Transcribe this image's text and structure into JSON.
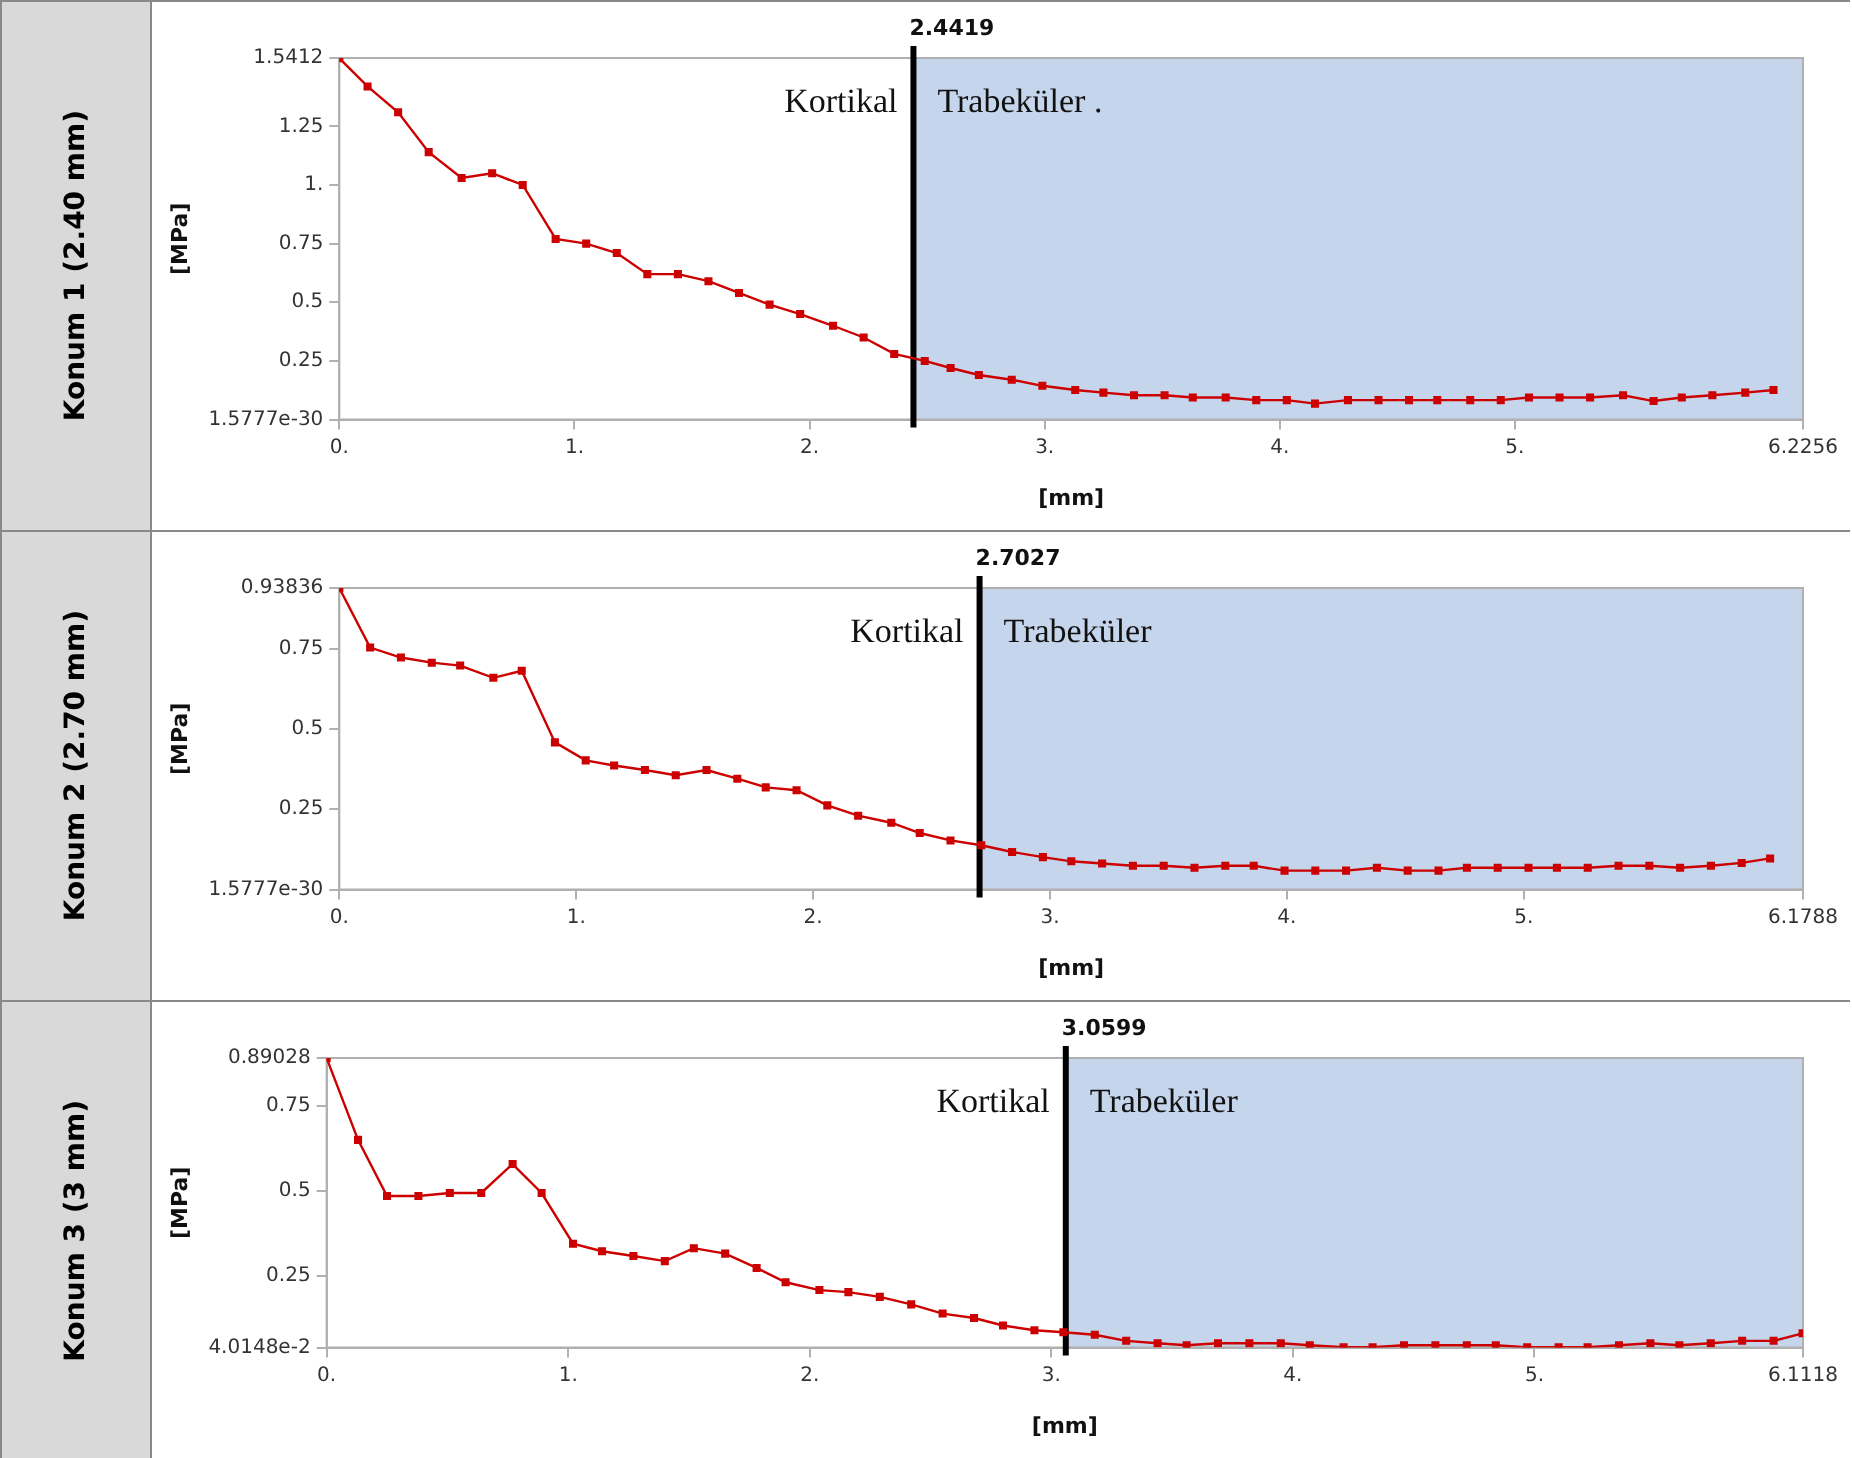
{
  "chart_data": [
    {
      "type": "line",
      "title": "Konum 1 (2.40 mm)",
      "xlabel": "[mm]",
      "ylabel": "[MPa]",
      "color": "#cc0000",
      "marker": "square",
      "grid": false,
      "legend": false,
      "x": [
        0,
        0.12,
        0.25,
        0.38,
        0.52,
        0.65,
        0.78,
        0.92,
        1.05,
        1.18,
        1.31,
        1.44,
        1.57,
        1.7,
        1.83,
        1.96,
        2.1,
        2.23,
        2.36,
        2.49,
        2.6,
        2.72,
        2.86,
        2.99,
        3.13,
        3.25,
        3.38,
        3.51,
        3.63,
        3.77,
        3.9,
        4.03,
        4.15,
        4.29,
        4.42,
        4.55,
        4.67,
        4.81,
        4.94,
        5.06,
        5.19,
        5.32,
        5.46,
        5.59,
        5.71,
        5.84,
        5.98,
        6.1
      ],
      "values": [
        1.54,
        1.42,
        1.31,
        1.14,
        1.03,
        1.05,
        1.0,
        0.77,
        0.75,
        0.71,
        0.62,
        0.62,
        0.59,
        0.54,
        0.49,
        0.45,
        0.4,
        0.35,
        0.28,
        0.25,
        0.22,
        0.19,
        0.17,
        0.144,
        0.126,
        0.115,
        0.104,
        0.104,
        0.094,
        0.094,
        0.083,
        0.083,
        0.068,
        0.083,
        0.083,
        0.083,
        0.083,
        0.083,
        0.083,
        0.094,
        0.094,
        0.094,
        0.104,
        0.079,
        0.094,
        0.104,
        0.115,
        0.126
      ],
      "xlim": [
        0,
        6.2256
      ],
      "xticks": [
        {
          "value": 0,
          "label": "0."
        },
        {
          "value": 1,
          "label": "1."
        },
        {
          "value": 2,
          "label": "2."
        },
        {
          "value": 3,
          "label": "3."
        },
        {
          "value": 4,
          "label": "4."
        },
        {
          "value": 5,
          "label": "5."
        },
        6.2256
      ],
      "ylim": [
        1.5777e-30,
        1.5412
      ],
      "yticks": [
        {
          "value": 1.5777e-30,
          "label": "1.5777e-30"
        },
        0.25,
        0.5,
        0.75,
        {
          "value": 1,
          "label": "1."
        },
        1.25,
        1.5412
      ],
      "ref_lines": [
        {
          "axis": "x",
          "value": 2.4419,
          "label": "2.4419",
          "color": "#000000"
        }
      ],
      "bands": [
        {
          "axis": "x",
          "from": 2.4419,
          "to": 6.2256,
          "label": "Trabeküler .",
          "color": "#c5d5ec"
        }
      ],
      "annotations": [
        "Kortikal"
      ]
    },
    {
      "type": "line",
      "title": "Konum 2 (2.70 mm)",
      "xlabel": "[mm]",
      "ylabel": "[MPa]",
      "color": "#cc0000",
      "marker": "square",
      "grid": false,
      "legend": false,
      "x": [
        0,
        0.13,
        0.26,
        0.39,
        0.51,
        0.65,
        0.77,
        0.91,
        1.04,
        1.16,
        1.29,
        1.42,
        1.55,
        1.68,
        1.8,
        1.93,
        2.06,
        2.19,
        2.33,
        2.45,
        2.58,
        2.71,
        2.84,
        2.97,
        3.09,
        3.22,
        3.35,
        3.48,
        3.61,
        3.74,
        3.86,
        3.99,
        4.12,
        4.25,
        4.38,
        4.51,
        4.64,
        4.76,
        4.89,
        5.02,
        5.14,
        5.27,
        5.4,
        5.53,
        5.66,
        5.79,
        5.92,
        6.04
      ],
      "values": [
        0.938,
        0.753,
        0.722,
        0.706,
        0.697,
        0.659,
        0.681,
        0.458,
        0.402,
        0.386,
        0.372,
        0.356,
        0.372,
        0.345,
        0.318,
        0.309,
        0.262,
        0.23,
        0.208,
        0.176,
        0.153,
        0.138,
        0.117,
        0.101,
        0.088,
        0.081,
        0.074,
        0.074,
        0.068,
        0.074,
        0.074,
        0.059,
        0.059,
        0.059,
        0.068,
        0.059,
        0.059,
        0.068,
        0.068,
        0.068,
        0.068,
        0.068,
        0.074,
        0.074,
        0.068,
        0.074,
        0.083,
        0.097
      ],
      "xlim": [
        0,
        6.1788
      ],
      "xticks": [
        {
          "value": 0,
          "label": "0."
        },
        {
          "value": 1,
          "label": "1."
        },
        {
          "value": 2,
          "label": "2."
        },
        {
          "value": 3,
          "label": "3."
        },
        {
          "value": 4,
          "label": "4."
        },
        {
          "value": 5,
          "label": "5."
        },
        6.1788
      ],
      "ylim": [
        1.5777e-30,
        0.93836
      ],
      "yticks": [
        {
          "value": 1.5777e-30,
          "label": "1.5777e-30"
        },
        0.25,
        0.5,
        0.75,
        0.93836
      ],
      "ref_lines": [
        {
          "axis": "x",
          "value": 2.7027,
          "label": "2.7027",
          "color": "#000000"
        }
      ],
      "bands": [
        {
          "axis": "x",
          "from": 2.7027,
          "to": 6.1788,
          "label": "Trabeküler",
          "color": "#c5d5ec"
        }
      ],
      "annotations": [
        "Kortikal"
      ]
    },
    {
      "type": "line",
      "title": "Konum 3 (3 mm)",
      "xlabel": "[mm]",
      "ylabel": "[MPa]",
      "color": "#cc0000",
      "marker": "square",
      "grid": false,
      "legend": false,
      "x": [
        0,
        0.13,
        0.25,
        0.38,
        0.51,
        0.64,
        0.77,
        0.89,
        1.02,
        1.14,
        1.27,
        1.4,
        1.52,
        1.65,
        1.78,
        1.9,
        2.04,
        2.16,
        2.29,
        2.42,
        2.55,
        2.68,
        2.8,
        2.93,
        3.05,
        3.18,
        3.31,
        3.44,
        3.56,
        3.69,
        3.82,
        3.95,
        4.07,
        4.21,
        4.33,
        4.46,
        4.59,
        4.72,
        4.84,
        4.97,
        5.1,
        5.22,
        5.35,
        5.48,
        5.6,
        5.73,
        5.86,
        5.99,
        6.11
      ],
      "values": [
        0.89,
        0.65,
        0.485,
        0.485,
        0.494,
        0.494,
        0.579,
        0.494,
        0.345,
        0.323,
        0.309,
        0.294,
        0.332,
        0.316,
        0.274,
        0.232,
        0.209,
        0.203,
        0.189,
        0.167,
        0.14,
        0.127,
        0.105,
        0.091,
        0.085,
        0.078,
        0.06,
        0.053,
        0.047,
        0.053,
        0.053,
        0.053,
        0.047,
        0.041,
        0.041,
        0.047,
        0.047,
        0.047,
        0.047,
        0.041,
        0.041,
        0.041,
        0.047,
        0.053,
        0.047,
        0.053,
        0.06,
        0.06,
        0.082
      ],
      "xlim": [
        0,
        6.1118
      ],
      "xticks": [
        {
          "value": 0,
          "label": "0."
        },
        {
          "value": 1,
          "label": "1."
        },
        {
          "value": 2,
          "label": "2."
        },
        {
          "value": 3,
          "label": "3."
        },
        {
          "value": 4,
          "label": "4."
        },
        {
          "value": 5,
          "label": "5."
        },
        6.1118
      ],
      "ylim": [
        0.040148,
        0.89028
      ],
      "yticks": [
        {
          "value": 0.040148,
          "label": "4.0148e-2"
        },
        0.25,
        0.5,
        0.75,
        0.89028
      ],
      "ref_lines": [
        {
          "axis": "x",
          "value": 3.0599,
          "label": "3.0599",
          "color": "#000000"
        }
      ],
      "bands": [
        {
          "axis": "x",
          "from": 3.0599,
          "to": 6.1118,
          "label": "Trabeküler",
          "color": "#c5d5ec"
        }
      ],
      "annotations": [
        "Kortikal"
      ]
    }
  ]
}
